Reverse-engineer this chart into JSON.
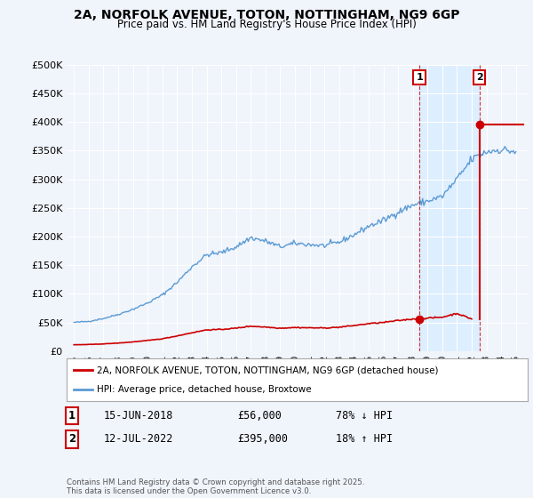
{
  "title_line1": "2A, NORFOLK AVENUE, TOTON, NOTTINGHAM, NG9 6GP",
  "title_line2": "Price paid vs. HM Land Registry's House Price Index (HPI)",
  "ylabel_ticks": [
    "£0",
    "£50K",
    "£100K",
    "£150K",
    "£200K",
    "£250K",
    "£300K",
    "£350K",
    "£400K",
    "£450K",
    "£500K"
  ],
  "ytick_values": [
    0,
    50000,
    100000,
    150000,
    200000,
    250000,
    300000,
    350000,
    400000,
    450000,
    500000
  ],
  "ylim": [
    0,
    500000
  ],
  "hpi_color": "#5b9bd5",
  "sale_color": "#cc0000",
  "shade_color": "#ddeeff",
  "background_color": "#f0f4fb",
  "legend_label_red": "2A, NORFOLK AVENUE, TOTON, NOTTINGHAM, NG9 6GP (detached house)",
  "legend_label_blue": "HPI: Average price, detached house, Broxtowe",
  "sale1_x": 2018.45,
  "sale1_y": 56000,
  "sale2_x": 2022.53,
  "sale2_y": 395000,
  "annotation1_date": "15-JUN-2018",
  "annotation1_price": "£56,000",
  "annotation1_hpi": "78% ↓ HPI",
  "annotation2_date": "12-JUL-2022",
  "annotation2_price": "£395,000",
  "annotation2_hpi": "18% ↑ HPI",
  "footer": "Contains HM Land Registry data © Crown copyright and database right 2025.\nThis data is licensed under the Open Government Licence v3.0.",
  "xtick_years": [
    1995,
    1996,
    1997,
    1998,
    1999,
    2000,
    2001,
    2002,
    2003,
    2004,
    2005,
    2006,
    2007,
    2008,
    2009,
    2010,
    2011,
    2012,
    2013,
    2014,
    2015,
    2016,
    2017,
    2018,
    2019,
    2020,
    2021,
    2022,
    2023,
    2024,
    2025
  ],
  "hpi_anchors_years": [
    1995,
    1996,
    1997,
    1998,
    1999,
    2000,
    2001,
    2002,
    2003,
    2004,
    2005,
    2006,
    2007,
    2008,
    2009,
    2010,
    2011,
    2012,
    2013,
    2014,
    2015,
    2016,
    2017,
    2018,
    2019,
    2020,
    2021,
    2022,
    2023,
    2024,
    2025
  ],
  "hpi_anchors_vals": [
    50000,
    52000,
    57000,
    64000,
    73000,
    84000,
    98000,
    120000,
    147000,
    168000,
    172000,
    182000,
    198000,
    192000,
    182000,
    188000,
    186000,
    184000,
    190000,
    203000,
    218000,
    228000,
    243000,
    255000,
    262000,
    270000,
    300000,
    335000,
    348000,
    352000,
    348000
  ],
  "red_anchors_years": [
    1995,
    1996,
    1997,
    1998,
    1999,
    2000,
    2001,
    2002,
    2003,
    2004,
    2005,
    2006,
    2007,
    2008,
    2009,
    2010,
    2011,
    2012,
    2013,
    2014,
    2015,
    2016,
    2017,
    2018,
    2019,
    2020,
    2021,
    2022
  ],
  "red_anchors_vals": [
    11000,
    11500,
    12500,
    14000,
    16000,
    18500,
    21500,
    26500,
    32000,
    37000,
    37800,
    40000,
    43500,
    42000,
    40000,
    41200,
    40700,
    40300,
    41700,
    44600,
    47900,
    50000,
    53300,
    56000,
    57500,
    59200,
    65800,
    56000
  ]
}
